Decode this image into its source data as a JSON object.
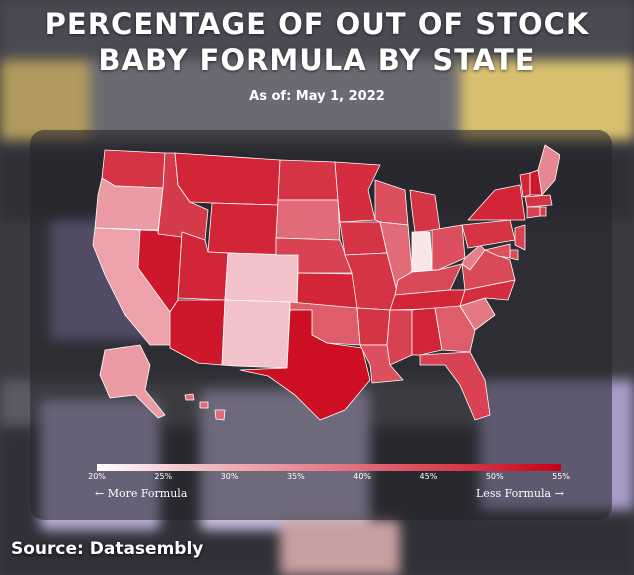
{
  "title_line1": "PERCENTAGE OF OUT OF STOCK",
  "title_line2": "BABY FORMULA BY STATE",
  "as_of": "As of: May 1, 2022",
  "source": "Source: Datasembly",
  "legend": {
    "ticks": [
      "20%",
      "25%",
      "30%",
      "35%",
      "40%",
      "45%",
      "50%",
      "55%"
    ],
    "min": 20,
    "max": 55,
    "left_label": "More Formula",
    "right_label": "Less Formula"
  },
  "colors": {
    "scale": [
      "#ffffff",
      "#f4c8cd",
      "#e88893",
      "#d2283a",
      "#c80014"
    ]
  },
  "chart_data": {
    "type": "choropleth",
    "title": "PERCENTAGE OF OUT OF STOCK BABY FORMULA BY STATE",
    "subtitle": "As of: May 1, 2022",
    "unit": "%",
    "range": [
      20,
      55
    ],
    "states": {
      "WA": 48,
      "OR": 33,
      "CA": 32,
      "NV": 52,
      "ID": 47,
      "MT": 50,
      "WY": 50,
      "UT": 50,
      "AZ": 52,
      "CO": 27,
      "NM": 27,
      "ND": 48,
      "SD": 40,
      "NE": 46,
      "KS": 50,
      "OK": 42,
      "TX": 53,
      "MN": 49,
      "IA": 48,
      "MO": 48,
      "AR": 48,
      "LA": 44,
      "WI": 44,
      "IL": 40,
      "MI": 48,
      "IN": 23,
      "OH": 44,
      "KY": 45,
      "TN": 50,
      "MS": 46,
      "AL": 50,
      "GA": 42,
      "FL": 46,
      "SC": 38,
      "NC": 49,
      "VA": 45,
      "WV": 37,
      "PA": 48,
      "NY": 50,
      "VT": 50,
      "NH": 52,
      "ME": 36,
      "MA": 48,
      "CT": 46,
      "RI": 47,
      "NJ": 46,
      "DE": 45,
      "MD": 44,
      "AK": 33,
      "HI": 40
    }
  }
}
